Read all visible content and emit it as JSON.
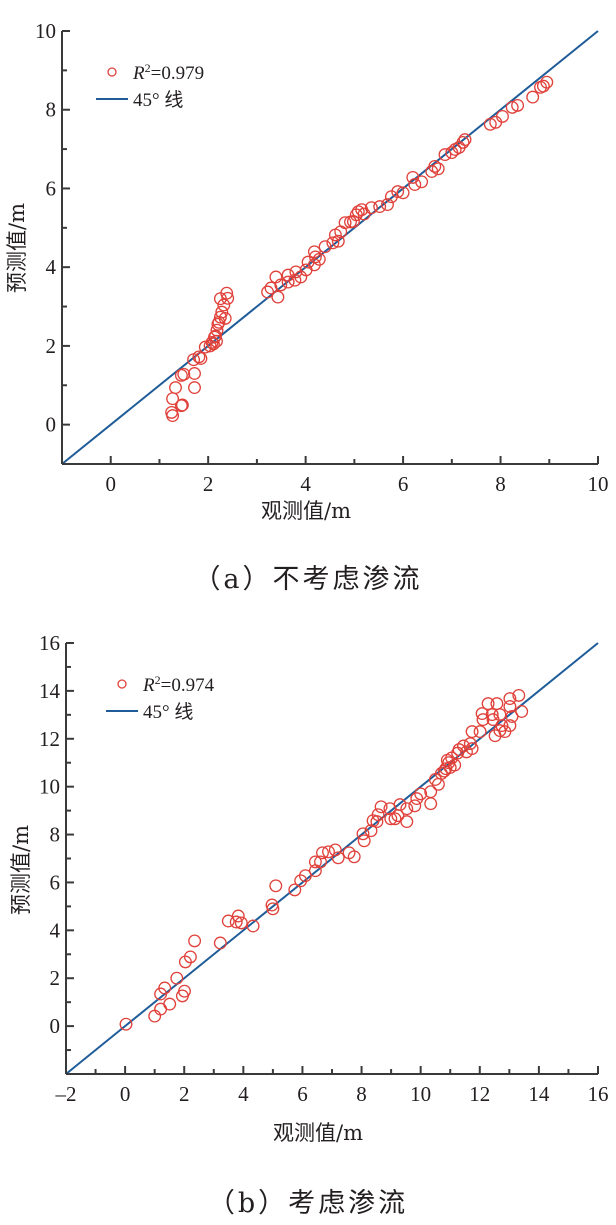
{
  "colors": {
    "marker": "#e0413a",
    "line": "#1f5c99",
    "axis": "#3a3a3a"
  },
  "chart_data": [
    {
      "type": "scatter",
      "caption": "（a）不考虑渗流",
      "xlabel": "观测值/m",
      "ylabel": "预测值/m",
      "xlim": [
        -1,
        10
      ],
      "ylim": [
        -1,
        10
      ],
      "xticks": [
        0,
        2,
        4,
        6,
        8,
        10
      ],
      "yticks": [
        0,
        2,
        4,
        6,
        8,
        10
      ],
      "xtick_labels": [
        "0",
        "2",
        "4",
        "6",
        "8",
        "10"
      ],
      "ytick_labels": [
        "0",
        "2",
        "4",
        "6",
        "8",
        "10"
      ],
      "grid": false,
      "legend_position": "top-left",
      "legend": [
        {
          "type": "marker",
          "label_prefix": "R",
          "label_sup": "2",
          "label_suffix": "=0.979"
        },
        {
          "type": "line",
          "label": "45° 线"
        }
      ],
      "reference_line": {
        "from": [
          -1,
          -1
        ],
        "to": [
          10,
          10
        ]
      },
      "series": [
        {
          "name": "R²=0.979",
          "marker": "open-circle",
          "x": [
            1.27,
            1.25,
            1.45,
            1.47,
            1.72,
            1.27,
            1.33,
            1.72,
            1.45,
            1.5,
            1.7,
            1.85,
            1.81,
            1.94,
            2.08,
            2.13,
            2.11,
            2.17,
            2.04,
            2.15,
            2.18,
            2.2,
            2.22,
            2.25,
            2.28,
            2.32,
            2.25,
            2.4,
            2.38,
            2.35,
            3.22,
            3.29,
            3.43,
            3.39,
            3.49,
            3.64,
            3.64,
            3.8,
            3.78,
            3.9,
            4.01,
            4.05,
            4.18,
            4.2,
            4.18,
            4.28,
            4.4,
            4.56,
            4.61,
            4.67,
            4.72,
            4.81,
            4.92,
            4.98,
            5.04,
            5.08,
            5.15,
            5.2,
            5.35,
            5.52,
            5.68,
            5.76,
            5.89,
            6.0,
            6.2,
            6.24,
            6.38,
            6.59,
            6.65,
            6.72,
            6.86,
            7.0,
            7.07,
            7.15,
            7.23,
            7.27,
            7.79,
            7.9,
            8.04,
            8.24,
            8.35,
            8.66,
            8.82,
            8.88,
            8.95
          ],
          "y": [
            0.23,
            0.31,
            0.48,
            0.5,
            0.94,
            0.66,
            0.94,
            1.3,
            1.25,
            1.28,
            1.65,
            1.68,
            1.72,
            1.97,
            2.09,
            2.22,
            2.05,
            2.12,
            2.0,
            2.25,
            2.4,
            2.55,
            2.6,
            2.73,
            2.86,
            3.04,
            3.2,
            3.21,
            3.34,
            2.7,
            3.37,
            3.47,
            3.24,
            3.75,
            3.55,
            3.8,
            3.62,
            3.88,
            3.67,
            3.75,
            3.93,
            4.13,
            4.39,
            4.26,
            4.06,
            4.2,
            4.52,
            4.62,
            4.82,
            4.66,
            4.9,
            5.13,
            5.15,
            5.16,
            5.33,
            5.41,
            5.46,
            5.35,
            5.51,
            5.54,
            5.59,
            5.79,
            5.92,
            5.89,
            6.28,
            6.1,
            6.17,
            6.43,
            6.56,
            6.5,
            6.86,
            6.91,
            6.99,
            7.04,
            7.17,
            7.24,
            7.63,
            7.68,
            7.83,
            8.06,
            8.11,
            8.32,
            8.57,
            8.6,
            8.7
          ]
        }
      ]
    },
    {
      "type": "scatter",
      "caption": "（b）考虑渗流",
      "xlabel": "观测值/m",
      "ylabel": "预测值/m",
      "xlim": [
        -2,
        16
      ],
      "ylim": [
        -2,
        16
      ],
      "xticks": [
        -2,
        0,
        2,
        4,
        6,
        8,
        10,
        12,
        14,
        16
      ],
      "yticks": [
        0,
        2,
        4,
        6,
        8,
        10,
        12,
        14,
        16
      ],
      "xtick_labels": [
        "–2",
        "0",
        "2",
        "4",
        "6",
        "8",
        "10",
        "12",
        "14",
        "16"
      ],
      "ytick_labels": [
        "0",
        "2",
        "4",
        "6",
        "8",
        "10",
        "12",
        "14",
        "16"
      ],
      "grid": false,
      "legend_position": "top-left",
      "legend": [
        {
          "type": "marker",
          "label_prefix": "R",
          "label_sup": "2",
          "label_suffix": "=0.974"
        },
        {
          "type": "line",
          "label": "45° 线"
        }
      ],
      "reference_line": {
        "from": [
          -2,
          -2
        ],
        "to": [
          16,
          16
        ]
      },
      "series": [
        {
          "name": "R²=0.974",
          "marker": "open-circle",
          "x": [
            0.03,
            1.0,
            1.2,
            1.51,
            1.2,
            1.34,
            1.94,
            2.01,
            1.75,
            2.04,
            2.21,
            2.35,
            3.22,
            3.49,
            3.76,
            3.83,
            3.93,
            4.33,
            4.97,
            5.0,
            5.1,
            5.74,
            5.94,
            6.1,
            6.44,
            6.44,
            6.61,
            6.68,
            6.88,
            7.11,
            7.21,
            7.58,
            7.75,
            8.05,
            8.09,
            8.32,
            8.39,
            8.52,
            8.56,
            8.66,
            8.96,
            8.99,
            9.13,
            9.23,
            9.3,
            9.53,
            9.53,
            9.8,
            9.87,
            10.0,
            10.34,
            10.34,
            10.5,
            10.7,
            10.85,
            10.95,
            11.05,
            11.15,
            11.25,
            10.6,
            10.8,
            10.9,
            11.0,
            11.3,
            11.45,
            11.55,
            11.68,
            11.74,
            11.74,
            12.28,
            12.58,
            13.02,
            13.32,
            12.08,
            12.42,
            12.68,
            13.02,
            13.42,
            12.11,
            12.45,
            13.09,
            12.75,
            13.02,
            12.68,
            12.85,
            12.52,
            12.01
          ],
          "y": [
            0.08,
            0.42,
            0.71,
            0.92,
            1.34,
            1.59,
            1.26,
            1.46,
            2.0,
            2.68,
            2.89,
            3.56,
            3.47,
            4.39,
            4.35,
            4.6,
            4.31,
            4.18,
            5.06,
            4.9,
            5.86,
            5.69,
            6.07,
            6.28,
            6.49,
            6.86,
            6.86,
            7.24,
            7.28,
            7.36,
            7.03,
            7.24,
            7.07,
            8.03,
            7.74,
            8.16,
            8.58,
            8.54,
            8.83,
            9.16,
            9.08,
            8.66,
            8.66,
            8.79,
            9.25,
            8.54,
            9.08,
            9.2,
            9.5,
            9.7,
            9.29,
            9.79,
            10.3,
            10.55,
            10.75,
            11.0,
            11.2,
            10.9,
            11.4,
            10.1,
            10.65,
            11.1,
            10.8,
            11.55,
            11.7,
            11.45,
            11.8,
            12.3,
            11.59,
            13.47,
            13.47,
            13.68,
            13.81,
            13.05,
            13.01,
            13.01,
            13.35,
            13.14,
            12.8,
            12.8,
            12.93,
            12.55,
            12.55,
            12.34,
            12.3,
            12.13,
            12.3
          ]
        }
      ]
    }
  ]
}
